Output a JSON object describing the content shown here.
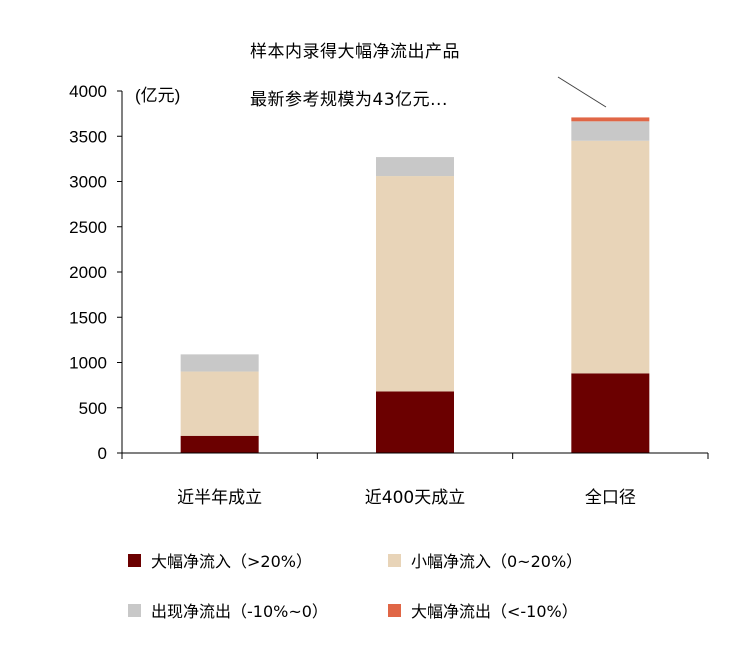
{
  "chart_data": {
    "type": "bar",
    "stacked": true,
    "categories": [
      "近半年成立",
      "近400天成立",
      "全口径"
    ],
    "series": [
      {
        "name": "大幅净流入（>20%）",
        "color": "#6b0000",
        "values": [
          190,
          680,
          880
        ]
      },
      {
        "name": "小幅净流入（0~20%）",
        "color": "#e8d4b8",
        "values": [
          710,
          2380,
          2570
        ]
      },
      {
        "name": "出现净流出（-10%~0）",
        "color": "#c8c8c8",
        "values": [
          190,
          210,
          215
        ]
      },
      {
        "name": "大幅净流出（<-10%）",
        "color": "#e06646",
        "values": [
          0,
          0,
          43
        ]
      }
    ],
    "unit_label": "(亿元)",
    "ylim": [
      0,
      4000
    ],
    "yticks": [
      0,
      500,
      1000,
      1500,
      2000,
      2500,
      3000,
      3500,
      4000
    ],
    "annotation": [
      "样本内录得大幅净流出产品",
      "最新参考规模为43亿元..."
    ],
    "grid": false,
    "legend_position": "bottom"
  }
}
